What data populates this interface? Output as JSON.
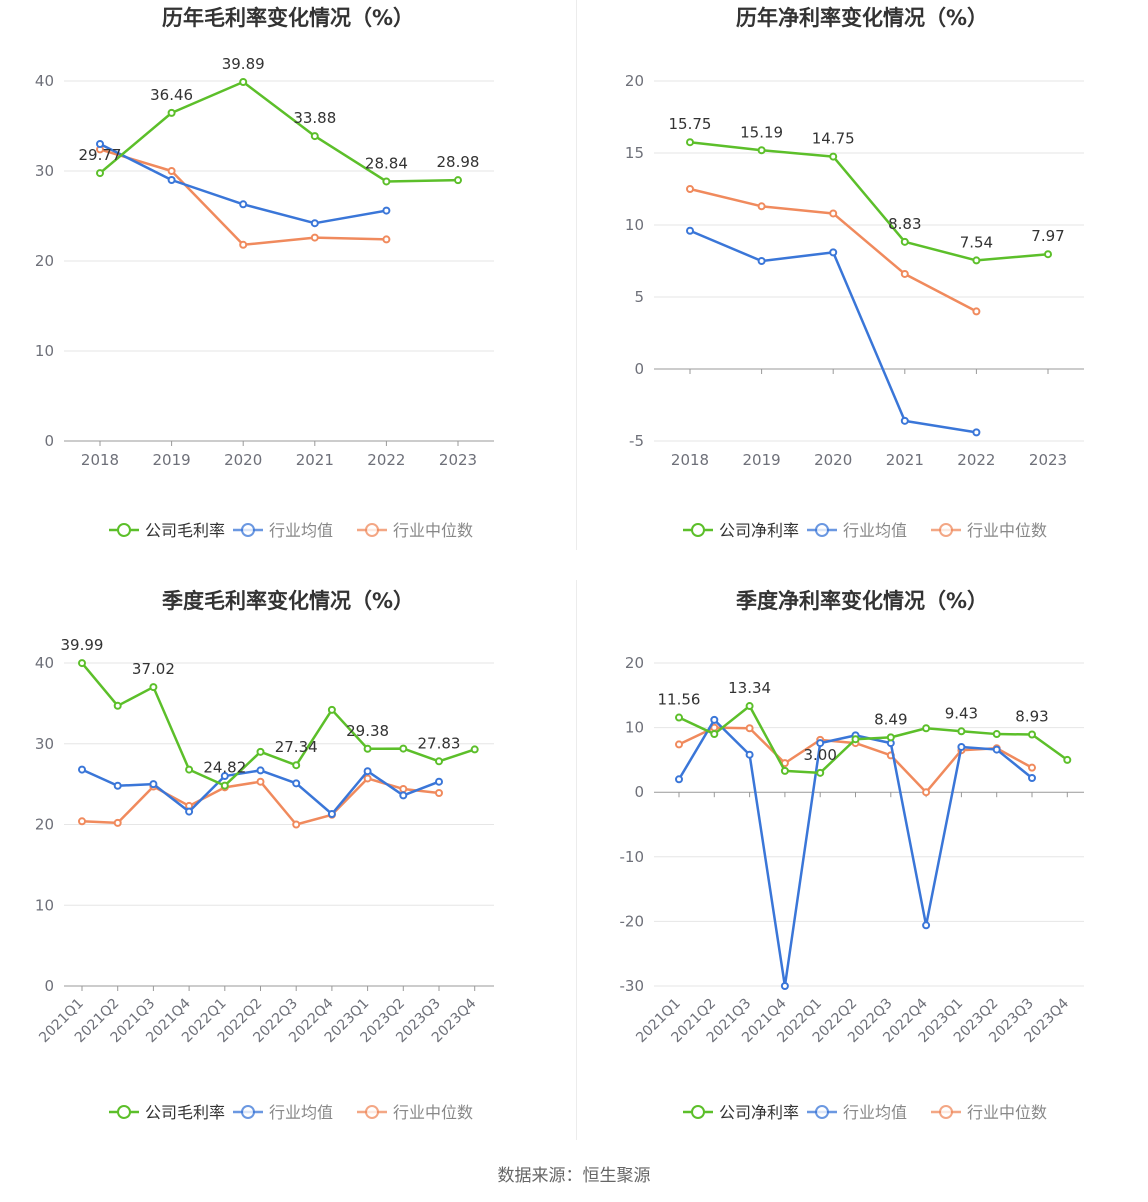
{
  "source_text": "数据来源：恒生聚源",
  "colors": {
    "company": "#5cbf2a",
    "avg": "#3a76d8",
    "median": "#f08a5d",
    "grid": "#e6e6e6",
    "axis": "#6e7079",
    "label": "#333333"
  },
  "chart_data": [
    {
      "type": "line",
      "title": "历年毛利率变化情况（%）",
      "categories": [
        "2018",
        "2019",
        "2020",
        "2021",
        "2022",
        "2023"
      ],
      "ylim": [
        0,
        40
      ],
      "yticks": [
        0,
        10,
        20,
        30,
        40
      ],
      "series": [
        {
          "name": "公司毛利率",
          "values": [
            29.77,
            36.46,
            39.89,
            33.88,
            28.84,
            28.98
          ],
          "labels": [
            "29.77",
            "36.46",
            "39.89",
            "33.88",
            "28.84",
            "28.98"
          ]
        },
        {
          "name": "行业均值",
          "values": [
            33.0,
            29.0,
            26.3,
            24.2,
            25.6,
            null
          ]
        },
        {
          "name": "行业中位数",
          "values": [
            32.4,
            30.0,
            21.8,
            22.6,
            22.4,
            null
          ]
        }
      ]
    },
    {
      "type": "line",
      "title": "历年净利率变化情况（%）",
      "categories": [
        "2018",
        "2019",
        "2020",
        "2021",
        "2022",
        "2023"
      ],
      "ylim": [
        -5,
        20
      ],
      "yticks": [
        -5,
        0,
        5,
        10,
        15,
        20
      ],
      "series": [
        {
          "name": "公司净利率",
          "values": [
            15.75,
            15.19,
            14.75,
            8.83,
            7.54,
            7.97
          ],
          "labels": [
            "15.75",
            "15.19",
            "14.75",
            "8.83",
            "7.54",
            "7.97"
          ]
        },
        {
          "name": "行业均值",
          "values": [
            9.6,
            7.5,
            8.1,
            -3.6,
            -4.4,
            null
          ]
        },
        {
          "name": "行业中位数",
          "values": [
            12.5,
            11.3,
            10.8,
            6.6,
            4.0,
            null
          ]
        }
      ]
    },
    {
      "type": "line",
      "title": "季度毛利率变化情况（%）",
      "categories": [
        "2021Q1",
        "2021Q2",
        "2021Q3",
        "2021Q4",
        "2022Q1",
        "2022Q2",
        "2022Q3",
        "2022Q4",
        "2023Q1",
        "2023Q2",
        "2023Q3",
        "2023Q4"
      ],
      "ylim": [
        0,
        40
      ],
      "yticks": [
        0,
        10,
        20,
        30,
        40
      ],
      "series": [
        {
          "name": "公司毛利率",
          "values": [
            39.99,
            34.7,
            37.02,
            26.8,
            24.82,
            29.0,
            27.34,
            34.2,
            29.38,
            29.4,
            27.83,
            29.3
          ],
          "labels": [
            "39.99",
            "",
            "37.02",
            "",
            "24.82",
            "",
            "27.34",
            "",
            "29.38",
            "",
            "27.83",
            ""
          ]
        },
        {
          "name": "行业均值",
          "values": [
            26.8,
            24.8,
            25.0,
            21.6,
            26.0,
            26.7,
            25.1,
            21.3,
            26.6,
            23.6,
            25.3,
            null
          ]
        },
        {
          "name": "行业中位数",
          "values": [
            20.4,
            20.2,
            24.7,
            22.3,
            24.6,
            25.3,
            20.0,
            21.2,
            25.7,
            24.4,
            23.9,
            null
          ]
        }
      ]
    },
    {
      "type": "line",
      "title": "季度净利率变化情况（%）",
      "categories": [
        "2021Q1",
        "2021Q2",
        "2021Q3",
        "2021Q4",
        "2022Q1",
        "2022Q2",
        "2022Q3",
        "2022Q4",
        "2023Q1",
        "2023Q2",
        "2023Q3",
        "2023Q4"
      ],
      "ylim": [
        -30,
        20
      ],
      "yticks": [
        -30,
        -20,
        -10,
        0,
        10,
        20
      ],
      "series": [
        {
          "name": "公司净利率",
          "values": [
            11.56,
            9.0,
            13.34,
            3.3,
            3.0,
            8.2,
            8.49,
            9.9,
            9.43,
            9.0,
            8.93,
            5.0
          ],
          "labels": [
            "11.56",
            "",
            "13.34",
            "",
            "3.00",
            "",
            "8.49",
            "",
            "9.43",
            "",
            "8.93",
            ""
          ]
        },
        {
          "name": "行业均值",
          "values": [
            2.0,
            11.2,
            5.8,
            -30.0,
            7.6,
            8.8,
            7.6,
            -20.6,
            7.0,
            6.6,
            2.2,
            null
          ]
        },
        {
          "name": "行业中位数",
          "values": [
            7.4,
            10.0,
            9.9,
            4.5,
            8.1,
            7.6,
            5.7,
            0.0,
            6.5,
            6.8,
            3.8,
            null
          ]
        }
      ]
    }
  ]
}
